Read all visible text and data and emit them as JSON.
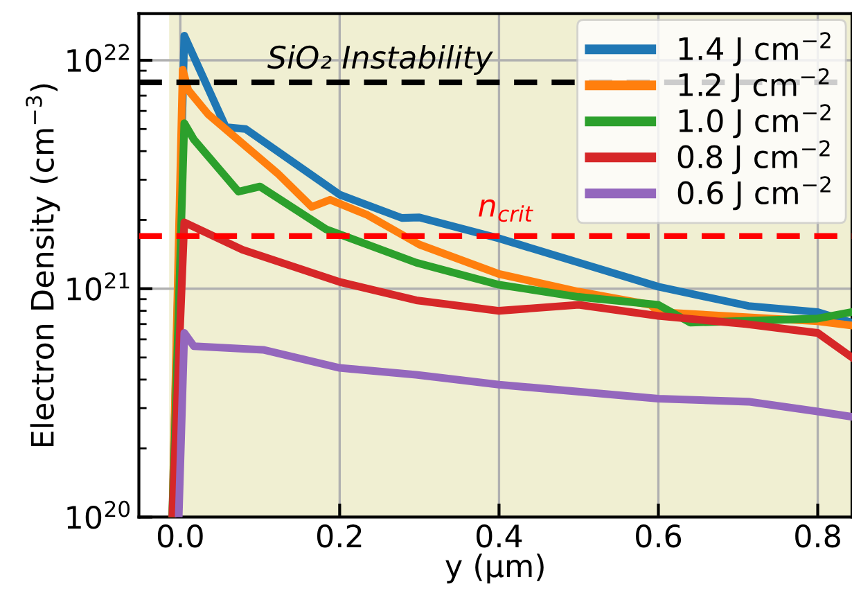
{
  "chart_data": {
    "type": "line",
    "xlabel": "y (µm)",
    "ylabel": "Electron Density (cm$^{−3}$)",
    "log": "y",
    "grid": true,
    "legend": "top right",
    "line_style": "solid",
    "marker": "none",
    "xlim": [
      -0.052,
      0.843
    ],
    "xticks": [
      {
        "value": 0.0,
        "label": "0.0"
      },
      0.2,
      0.4,
      0.6,
      0.8
    ],
    "ylim": [
      1e+20,
      1.6e+22
    ],
    "yticks": [
      {
        "value": 1e+20,
        "label": "10$^{20}$"
      },
      {
        "value": 1e+21,
        "label": "10$^{21}$"
      },
      {
        "value": 1e+22,
        "label": "10$^{22}$"
      }
    ],
    "bands": [
      {
        "axis": "x",
        "from": -0.014,
        "to": 0.843,
        "color": "#f0efd2"
      }
    ],
    "ref_lines": [
      {
        "axis": "y",
        "value": 8e+21,
        "label": "SiO₂ Instability",
        "color": "#000000",
        "line_style": "dashed"
      },
      {
        "axis": "y",
        "value": 1.7e+21,
        "label": "n$_{crit}$",
        "color": "#ff0000",
        "line_style": "dashed"
      }
    ],
    "series": [
      {
        "name": "1.4 J cm$^{−2}$",
        "color": "#1f77b4",
        "x": [
          -0.01,
          0.005,
          0.057,
          0.082,
          0.2,
          0.278,
          0.3,
          0.4,
          0.6,
          0.713,
          0.8,
          0.843
        ],
        "values": [
          1e+20,
          1.28e+22,
          5.1e+21,
          5e+21,
          2.58e+21,
          2.04e+21,
          2.05e+21,
          1.66e+21,
          1.02e+21,
          8.4e+20,
          7.9e+20,
          7.1e+20
        ]
      },
      {
        "name": "1.2 J cm$^{−2}$",
        "color": "#ff7f0e",
        "x": [
          -0.01,
          0.003,
          0.01,
          0.035,
          0.122,
          0.165,
          0.188,
          0.235,
          0.3,
          0.4,
          0.5,
          0.59,
          0.6,
          0.8,
          0.843
        ],
        "values": [
          1e+20,
          9.1e+21,
          7.4e+21,
          5.8e+21,
          3.2e+21,
          2.28e+21,
          2.45e+21,
          2.1e+21,
          1.56e+21,
          1.16e+21,
          9.7e+20,
          8.5e+20,
          7.9e+20,
          7.2e+20,
          6.9e+20
        ]
      },
      {
        "name": "1.0 J cm$^{−2}$",
        "color": "#2ca02c",
        "x": [
          -0.01,
          0.005,
          0.017,
          0.073,
          0.1,
          0.183,
          0.296,
          0.4,
          0.5,
          0.6,
          0.64,
          0.8,
          0.843
        ],
        "values": [
          1e+20,
          5.3e+21,
          4.5e+21,
          2.66e+21,
          2.8e+21,
          1.82e+21,
          1.3e+21,
          1.04e+21,
          9.2e+20,
          8.5e+20,
          7.1e+20,
          7.4e+20,
          7.9e+20
        ]
      },
      {
        "name": "0.8 J cm$^{−2}$",
        "color": "#d62728",
        "x": [
          -0.01,
          0.005,
          0.078,
          0.2,
          0.296,
          0.4,
          0.5,
          0.6,
          0.71,
          0.8,
          0.843
        ],
        "values": [
          1e+20,
          1.95e+21,
          1.48e+21,
          1.07e+21,
          8.9e+20,
          8e+20,
          8.5e+20,
          7.6e+20,
          7e+20,
          6.4e+20,
          5e+20
        ]
      },
      {
        "name": "0.6 J cm$^{−2}$",
        "color": "#9467bd",
        "x": [
          -0.002,
          0.005,
          0.017,
          0.104,
          0.2,
          0.296,
          0.4,
          0.6,
          0.713,
          0.8,
          0.843
        ],
        "values": [
          1e+20,
          6.4e+20,
          5.6e+20,
          5.4e+20,
          4.5e+20,
          4.2e+20,
          3.8e+20,
          3.3e+20,
          3.2e+20,
          2.9e+20,
          2.75e+20
        ]
      }
    ]
  }
}
